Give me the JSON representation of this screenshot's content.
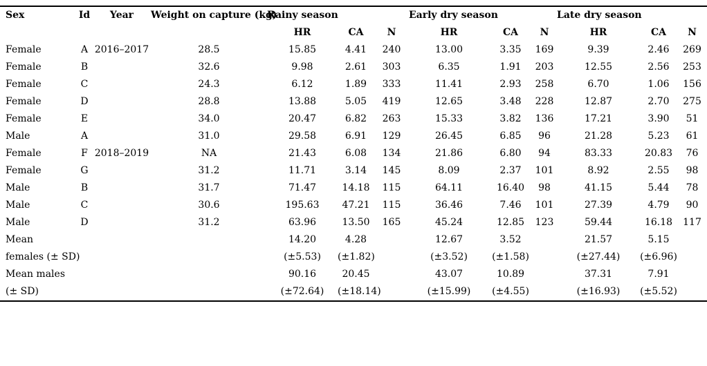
{
  "page": {
    "background_color": "#ffffff",
    "text_color": "#000000",
    "rule_color": "#000000"
  },
  "table": {
    "header_row1": [
      "Sex",
      "Id",
      "Year",
      "Weight on capture (kg)",
      "Rainy season",
      "",
      "",
      "Early dry season",
      "",
      "",
      "Late dry season",
      "",
      ""
    ],
    "header_row2": [
      "",
      "",
      "",
      "",
      "HR",
      "CA",
      "N",
      "HR",
      "CA",
      "N",
      "HR",
      "CA",
      "N"
    ],
    "season_groups": [
      "Rainy season",
      "Early dry season",
      "Late dry season"
    ],
    "metric_labels": [
      "HR",
      "CA",
      "N"
    ],
    "rows": [
      [
        "Female",
        "A",
        "2016–2017",
        "28.5",
        "15.85",
        "4.41",
        "240",
        "13.00",
        "3.35",
        "169",
        "9.39",
        "2.46",
        "269"
      ],
      [
        "Female",
        "B",
        "",
        "32.6",
        "9.98",
        "2.61",
        "303",
        "6.35",
        "1.91",
        "203",
        "12.55",
        "2.56",
        "253"
      ],
      [
        "Female",
        "C",
        "",
        "24.3",
        "6.12",
        "1.89",
        "333",
        "11.41",
        "2.93",
        "258",
        "6.70",
        "1.06",
        "156"
      ],
      [
        "Female",
        "D",
        "",
        "28.8",
        "13.88",
        "5.05",
        "419",
        "12.65",
        "3.48",
        "228",
        "12.87",
        "2.70",
        "275"
      ],
      [
        "Female",
        "E",
        "",
        "34.0",
        "20.47",
        "6.82",
        "263",
        "15.33",
        "3.82",
        "136",
        "17.21",
        "3.90",
        "51"
      ],
      [
        "Male",
        "A",
        "",
        "31.0",
        "29.58",
        "6.91",
        "129",
        "26.45",
        "6.85",
        "96",
        "21.28",
        "5.23",
        "61"
      ],
      [
        "Female",
        "F",
        "2018–2019",
        "NA",
        "21.43",
        "6.08",
        "134",
        "21.86",
        "6.80",
        "94",
        "83.33",
        "20.83",
        "76"
      ],
      [
        "Female",
        "G",
        "",
        "31.2",
        "11.71",
        "3.14",
        "145",
        "8.09",
        "2.37",
        "101",
        "8.92",
        "2.55",
        "98"
      ],
      [
        "Male",
        "B",
        "",
        "31.7",
        "71.47",
        "14.18",
        "115",
        "64.11",
        "16.40",
        "98",
        "41.15",
        "5.44",
        "78"
      ],
      [
        "Male",
        "C",
        "",
        "30.6",
        "195.63",
        "47.21",
        "115",
        "36.46",
        "7.46",
        "101",
        "27.39",
        "4.79",
        "90"
      ],
      [
        "Male",
        "D",
        "",
        "31.2",
        "63.96",
        "13.50",
        "165",
        "45.24",
        "12.85",
        "123",
        "59.44",
        "16.18",
        "117"
      ],
      [
        "Mean",
        "",
        "",
        "",
        "14.20",
        "4.28",
        "",
        "12.67",
        "3.52",
        "",
        "21.57",
        "5.15",
        ""
      ],
      [
        "females (± SD)",
        "",
        "",
        "",
        "(±5.53)",
        "(±1.82)",
        "",
        "(±3.52)",
        "(±1.58)",
        "",
        "(±27.44)",
        "(±6.96)",
        ""
      ],
      [
        "Mean males",
        "",
        "",
        "",
        "90.16",
        "20.45",
        "",
        "43.07",
        "10.89",
        "",
        "37.31",
        "7.91",
        ""
      ],
      [
        "(± SD)",
        "",
        "",
        "",
        "(±72.64)",
        "(±18.14)",
        "",
        "(±15.99)",
        "(±4.55)",
        "",
        "(±16.93)",
        "(±5.52)",
        ""
      ]
    ]
  }
}
